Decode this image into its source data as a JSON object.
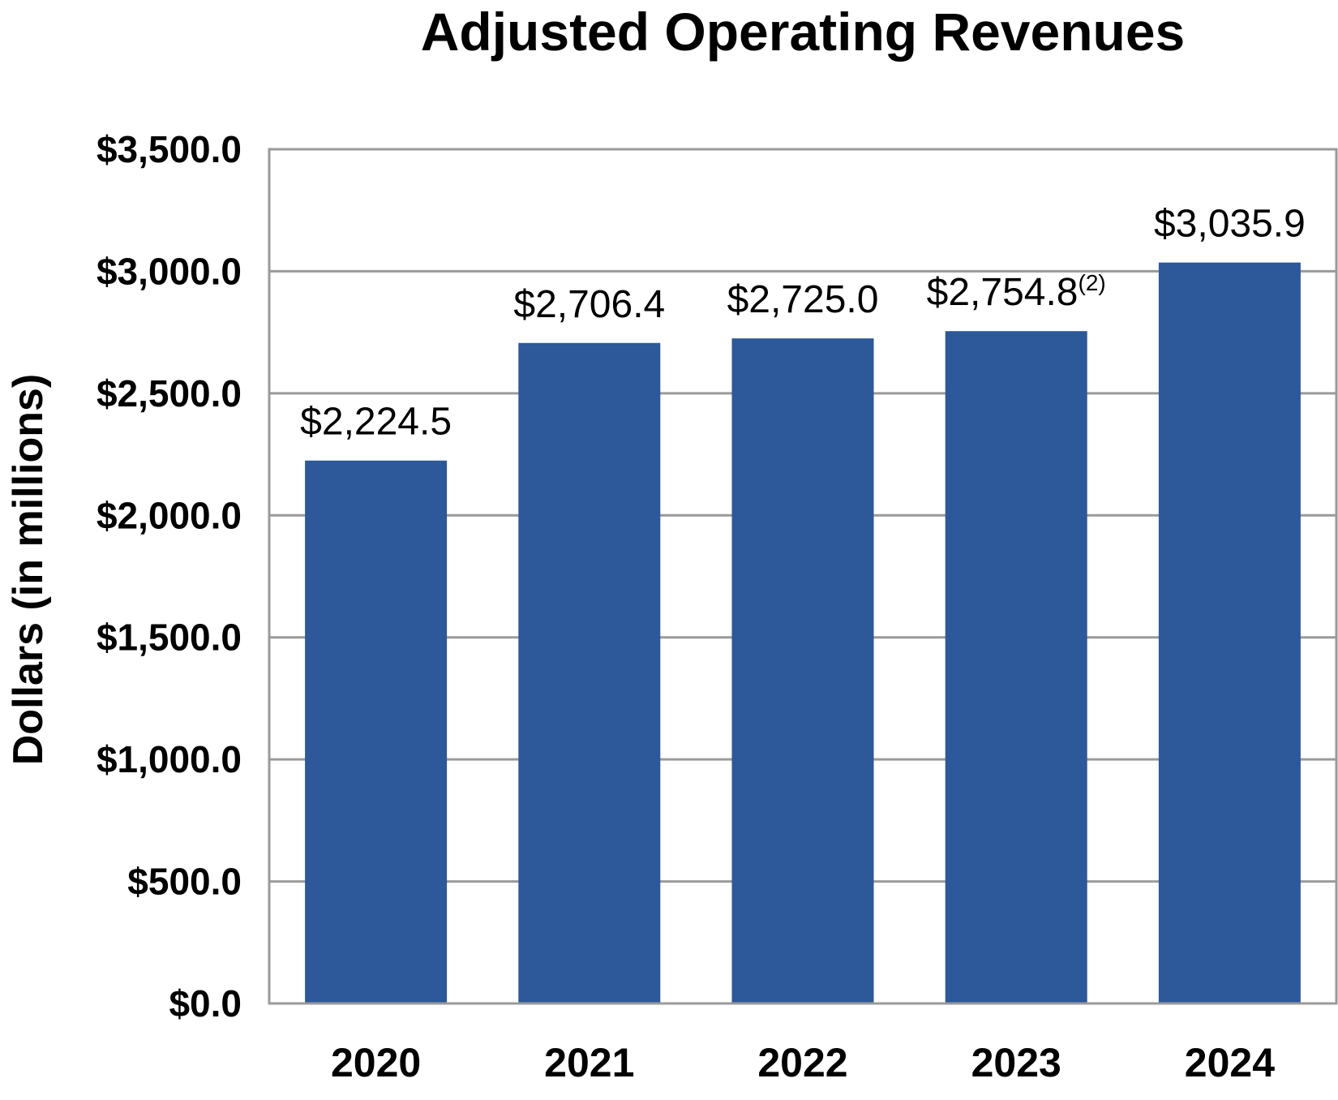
{
  "chart_data": {
    "type": "bar",
    "title": "Adjusted Operating Revenues",
    "xlabel": "",
    "ylabel": "Dollars (in millions)",
    "categories": [
      "2020",
      "2021",
      "2022",
      "2023",
      "2024"
    ],
    "values": [
      2224.5,
      2706.4,
      2725.0,
      2754.8,
      3035.9
    ],
    "data_labels": [
      "$2,224.5",
      "$2,706.4",
      "$2,725.0",
      "$2,754.8",
      "$3,035.9"
    ],
    "data_label_notes": [
      "",
      "",
      "",
      "(2)",
      ""
    ],
    "ylim": [
      0,
      3500
    ],
    "yticks": [
      0,
      500,
      1000,
      1500,
      2000,
      2500,
      3000,
      3500
    ],
    "ytick_labels": [
      "$0.0",
      "$500.0",
      "$1,000.0",
      "$1,500.0",
      "$2,000.0",
      "$2,500.0",
      "$3,000.0",
      "$3,500.0"
    ],
    "grid": true,
    "bar_color": "#2d5899",
    "grid_color": "#9a9a9a"
  }
}
